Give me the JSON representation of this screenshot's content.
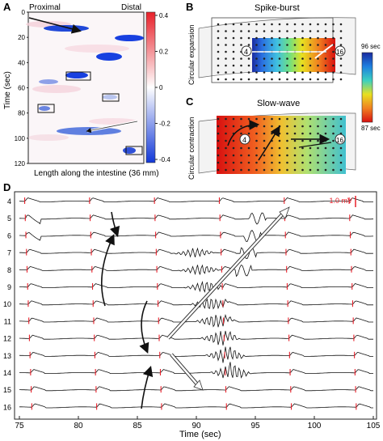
{
  "panels": {
    "a": {
      "letter": "A",
      "top_left": "Proximal",
      "top_right": "Distal",
      "ylabel": "Time (sec)",
      "xlabel": "Length along the intestine (36 mm)",
      "yticks": [
        "0",
        "20",
        "40",
        "60",
        "80",
        "100",
        "120"
      ],
      "colorbar_ticks": [
        "0.4",
        "0.2",
        "0",
        "-0.2",
        "-0.4"
      ],
      "colors": {
        "positive": "#e8202a",
        "zero": "#ffffff",
        "negative": "#1238d8"
      }
    },
    "b": {
      "letter": "B",
      "title": "Spike-burst",
      "side_label": "Circular expansion",
      "node_left": "4",
      "node_right": "16"
    },
    "c": {
      "letter": "C",
      "title": "Slow-wave",
      "side_label": "Circular contraction",
      "node_left": "4",
      "node_right": "16"
    },
    "scale": {
      "top": "96 sec",
      "bottom": "87 sec"
    },
    "d": {
      "letter": "D",
      "scale_label": "1.0 mV",
      "xlabel": "Time (sec)",
      "channels": [
        "4",
        "5",
        "6",
        "7",
        "8",
        "9",
        "10",
        "11",
        "12",
        "13",
        "14",
        "15",
        "16"
      ],
      "xticks": [
        "75",
        "80",
        "85",
        "90",
        "95",
        "100",
        "105"
      ],
      "marker_color": "#e8202a"
    }
  },
  "chart_data": [
    {
      "type": "heatmap",
      "panel": "A",
      "xlabel": "Length along the intestine (36 mm)",
      "ylabel": "Time (sec)",
      "ylim": [
        0,
        120
      ],
      "colorbar_range": [
        -0.4,
        0.4
      ],
      "features": [
        "negative streaks near 20, 40, 55, 95 sec",
        "boxed regions near 55, 62, 75, 115 sec"
      ]
    },
    {
      "type": "line",
      "panel": "D",
      "xlabel": "Time (sec)",
      "xlim": [
        75,
        105
      ],
      "channels": [
        "4",
        "5",
        "6",
        "7",
        "8",
        "9",
        "10",
        "11",
        "12",
        "13",
        "14",
        "15",
        "16"
      ],
      "slow_wave_period_sec": 5.5
    }
  ]
}
